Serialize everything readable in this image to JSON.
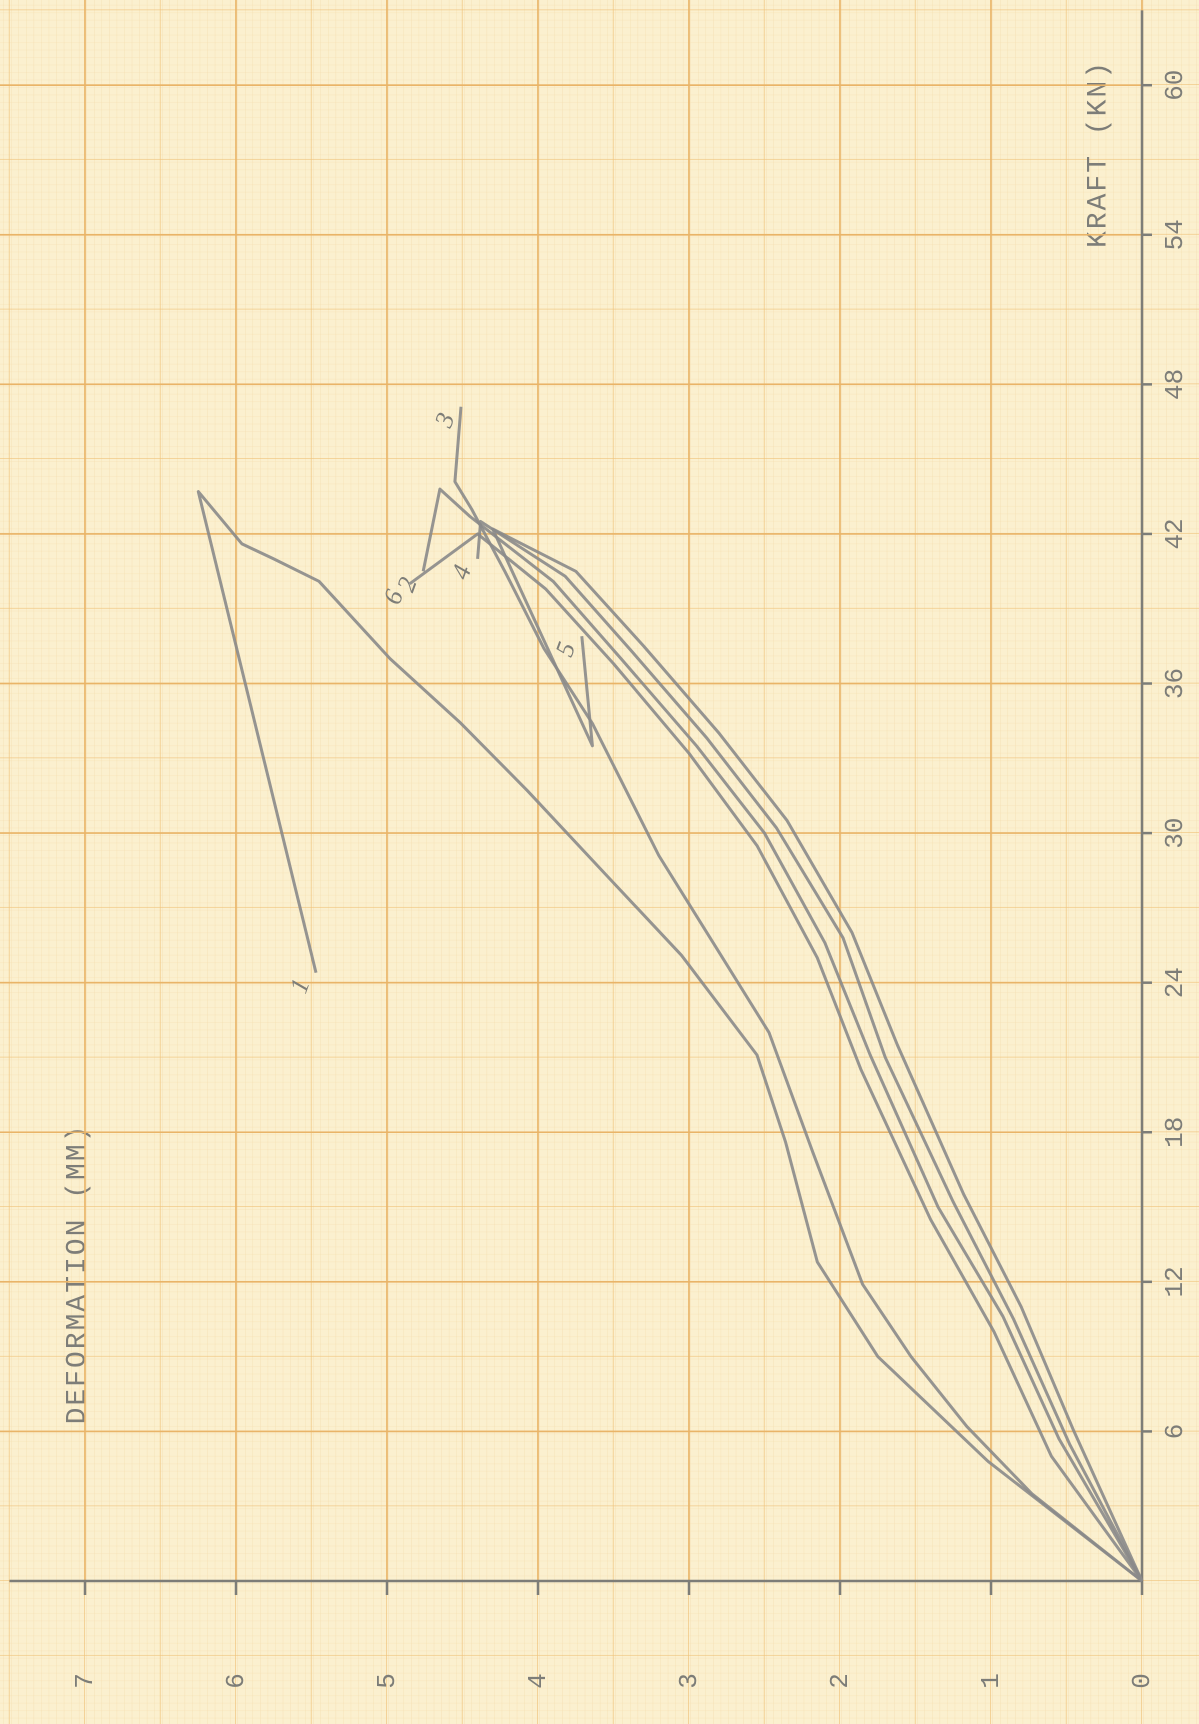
{
  "chart_data": {
    "type": "line",
    "x_label": "KRAFT (KN)",
    "y_label": "DEFORMATION (MM)",
    "xlim": [
      0,
      63
    ],
    "ylim": [
      0,
      7.5
    ],
    "xticks": [
      6,
      12,
      18,
      24,
      30,
      36,
      42,
      48,
      54,
      60
    ],
    "yticks": [
      0,
      1,
      2,
      3,
      4,
      5,
      6,
      7
    ],
    "grid": true,
    "series": [
      {
        "name": "1",
        "color": "#8a8a8a",
        "x": [
          0,
          4.8,
          9.0,
          12.8,
          17.6,
          21.1,
          25.1,
          28.2,
          31.7,
          34.4,
          37.0,
          40.1,
          41.0,
          41.6,
          43.7,
          24.4
        ],
        "values": [
          0,
          1.02,
          1.75,
          2.15,
          2.36,
          2.55,
          3.05,
          3.53,
          4.07,
          4.51,
          4.98,
          5.45,
          5.75,
          5.96,
          6.25,
          5.47
        ]
      },
      {
        "name": "2",
        "color": "#8a8a8a",
        "x": [
          0,
          5.7,
          10.6,
          15.0,
          21.1,
          25.6,
          30.0,
          33.5,
          37.0,
          40.1,
          42.7,
          43.8,
          40.5
        ],
        "values": [
          0,
          0.55,
          0.92,
          1.35,
          1.8,
          2.1,
          2.5,
          2.95,
          3.45,
          3.9,
          4.45,
          4.65,
          4.76
        ]
      },
      {
        "name": "3",
        "color": "#8a8a8a",
        "x": [
          0,
          3.5,
          6.2,
          9.0,
          11.9,
          17.2,
          22.0,
          25.6,
          29.1,
          34.4,
          37.4,
          40.5,
          43.0,
          44.1,
          47.1
        ],
        "values": [
          0,
          0.73,
          1.16,
          1.53,
          1.85,
          2.18,
          2.47,
          2.84,
          3.2,
          3.64,
          3.96,
          4.22,
          4.44,
          4.55,
          4.51
        ]
      },
      {
        "name": "4",
        "color": "#8a8a8a",
        "x": [
          0,
          5.5,
          10.5,
          15.2,
          21.0,
          25.8,
          30.2,
          33.8,
          37.3,
          40.3,
          42.5,
          41.0
        ],
        "values": [
          0,
          0.48,
          0.85,
          1.25,
          1.7,
          1.98,
          2.42,
          2.88,
          3.38,
          3.82,
          4.38,
          4.4
        ]
      },
      {
        "name": "5",
        "color": "#8a8a8a",
        "x": [
          0,
          6.0,
          11.0,
          15.5,
          21.5,
          26.0,
          30.5,
          34.0,
          37.5,
          40.5,
          42.2,
          33.5,
          37.9
        ],
        "values": [
          0,
          0.45,
          0.8,
          1.18,
          1.62,
          1.92,
          2.35,
          2.8,
          3.3,
          3.75,
          4.3,
          3.64,
          3.71
        ]
      },
      {
        "name": "6",
        "color": "#8a8a8a",
        "x": [
          0,
          5.0,
          10.0,
          14.5,
          20.5,
          25.0,
          29.5,
          33.2,
          36.8,
          39.8,
          42.0,
          40.0
        ],
        "values": [
          0,
          0.6,
          0.98,
          1.4,
          1.86,
          2.15,
          2.55,
          3.0,
          3.5,
          3.95,
          4.4,
          4.85
        ]
      }
    ]
  }
}
